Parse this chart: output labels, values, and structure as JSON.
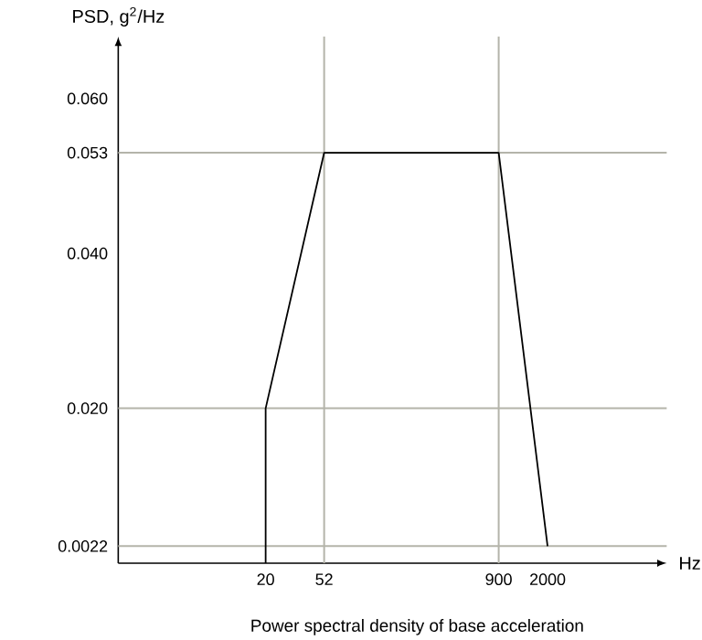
{
  "chart_data": {
    "type": "line",
    "title": "Power spectral density of base acceleration",
    "xlabel": "Hz",
    "ylabel": "PSD, g$^{2}$/Hz",
    "x": [
      20,
      20,
      52,
      900,
      2000
    ],
    "series": [
      {
        "color": "#000000",
        "values": [
          0,
          0.02,
          0.053,
          0.053,
          0.0022
        ]
      }
    ],
    "log": "x",
    "xlim": [
      1.8,
      14000
    ],
    "ylim": [
      0,
      0.068
    ],
    "xticks": [
      20,
      52,
      900,
      2000
    ],
    "yticks": [
      0.0022,
      {
        "value": 0.02,
        "label": "0.020"
      },
      {
        "value": 0.04,
        "label": "0.040"
      },
      0.053,
      {
        "value": 0.06,
        "label": "0.060"
      }
    ],
    "ref_lines": [
      {
        "axis": "y",
        "value": 0.053,
        "color": "#b4b4aa"
      },
      {
        "axis": "y",
        "value": 0.02,
        "color": "#b4b4aa"
      },
      {
        "axis": "y",
        "value": 0.0022,
        "color": "#b4b4aa"
      },
      {
        "axis": "x",
        "value": 52,
        "color": "#b4b4aa"
      },
      {
        "axis": "x",
        "value": 900,
        "color": "#b4b4aa"
      }
    ],
    "grid": false,
    "marker": "none",
    "line_style": "solid"
  }
}
